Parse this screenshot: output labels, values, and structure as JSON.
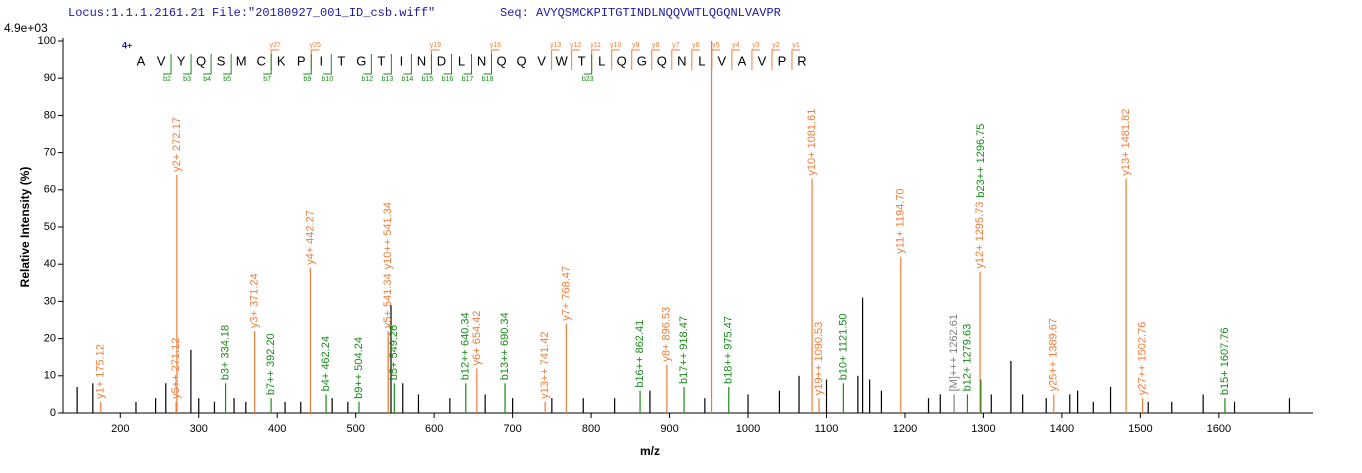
{
  "chart_data": {
    "type": "spectrum",
    "header_left": "Locus:1.1.1.2161.21 File:\"20180927_001_ID_csb.wiff\"",
    "header_right": "Seq: AVYQSMCKPITGTINDLNQQVWTLQGQNLVAVPR",
    "scale_label": "4.9e+03",
    "ylabel": "Relative   Intensity (%)",
    "xlabel": "m/z",
    "xlim": [
      127,
      1720
    ],
    "ylim": [
      0,
      100
    ],
    "xticks": [
      200,
      300,
      400,
      500,
      600,
      700,
      800,
      900,
      1000,
      1100,
      1200,
      1300,
      1400,
      1500,
      1600
    ],
    "yticks": [
      0,
      10,
      20,
      30,
      40,
      50,
      60,
      70,
      80,
      90,
      100
    ],
    "charge": "4+",
    "residues": [
      "A",
      "V",
      "Y",
      "Q",
      "S",
      "M",
      "C",
      "K",
      "P",
      "I",
      "T",
      "G",
      "T",
      "I",
      "N",
      "D",
      "L",
      "N",
      "Q",
      "Q",
      "V",
      "W",
      "T",
      "L",
      "Q",
      "G",
      "Q",
      "N",
      "L",
      "V",
      "A",
      "V",
      "P",
      "R"
    ],
    "y_ions": [
      "y27",
      "y25",
      "y19",
      "y16",
      "y13",
      "y12",
      "y11",
      "y10",
      "y9",
      "y8",
      "y7",
      "y6",
      "y5",
      "y4",
      "y3",
      "y2",
      "y1"
    ],
    "b_ions": [
      "b2",
      "b3",
      "b4",
      "b5",
      "b7",
      "b9",
      "b10",
      "b12",
      "b13",
      "b14",
      "b15",
      "b16",
      "b17",
      "b18",
      "b23"
    ],
    "series": [
      {
        "color": "#000000",
        "x": [
          145,
          165,
          220,
          245,
          258,
          290,
          300,
          320,
          345,
          360,
          410,
          430,
          470,
          490,
          545,
          560,
          580,
          620,
          665,
          700,
          750,
          790,
          830,
          875,
          945,
          1000,
          1040,
          1065,
          1100,
          1140,
          1146,
          1155,
          1170,
          1230,
          1245,
          1310,
          1335,
          1350,
          1380,
          1410,
          1420,
          1440,
          1462,
          1510,
          1540,
          1580,
          1620,
          1690
        ],
        "values": [
          7,
          8,
          3,
          4,
          8,
          17,
          4,
          3,
          4,
          3,
          3,
          3,
          4,
          3,
          29,
          8,
          5,
          4,
          5,
          4,
          4,
          4,
          4,
          6,
          4,
          5,
          6,
          10,
          9,
          10,
          31,
          9,
          6,
          4,
          5,
          5,
          14,
          5,
          4,
          5,
          6,
          3,
          7,
          3,
          3,
          5,
          3,
          4
        ]
      },
      {
        "color": "#ee7d3b",
        "x": [
          953.5
        ],
        "values": [
          100
        ]
      },
      {
        "color": "#ee7d3b",
        "x": [
          175.12,
          271.12,
          272.17,
          371.24,
          442.27,
          541.34,
          541.34,
          654.42,
          741.42,
          768.47,
          896.53,
          1081.61,
          1090.53,
          1194.7,
          1295.73,
          1389.67,
          1481.82,
          1502.76
        ],
        "values": [
          3,
          3,
          64,
          22,
          39,
          22,
          22,
          12,
          3,
          24,
          13,
          63,
          4,
          42,
          38,
          5,
          63,
          4
        ],
        "labels": [
          "y1+ 175.12",
          "y5++ 271.12",
          "y2+ 272.17",
          "y3+ 371.24",
          "y4+ 442.27",
          "y5+ 541.34",
          "y10++ 541.34",
          "y6+ 654.42",
          "y13++ 741.42",
          "y7+ 768.47",
          "y8+ 896.53",
          "y10+ 1081.61",
          "y19++ 1090.53",
          "y11+ 1194.70",
          "y12+ 1295.73",
          "y25++ 1389.67",
          "y13+ 1481.82",
          "y27++ 1502.76"
        ]
      },
      {
        "color": "#1a8a1a",
        "x": [
          334.18,
          392.2,
          462.24,
          504.24,
          549.26,
          640.34,
          690.34,
          862.41,
          918.47,
          975.47,
          1121.5,
          1279.63,
          1296.75,
          1607.76
        ],
        "values": [
          8,
          4,
          5,
          3,
          8,
          8,
          8,
          6,
          7,
          7,
          8,
          5,
          9,
          4
        ],
        "labels": [
          "b3+ 334.18",
          "b7++ 392.20",
          "b4+ 462.24",
          "b9++ 504.24",
          "b5+ 549.26",
          "b12++ 640.34",
          "b13++ 690.34",
          "b16++ 862.41",
          "b17++ 918.47",
          "b18++ 975.47",
          "b10+ 1121.50",
          "b12+ 1279.63",
          "b23++ 1296.75",
          "b15+ 1607.76"
        ]
      },
      {
        "color": "#808080",
        "x": [
          1262.61
        ],
        "values": [
          5
        ],
        "labels": [
          "[M]+++ 1262.61"
        ]
      }
    ]
  }
}
